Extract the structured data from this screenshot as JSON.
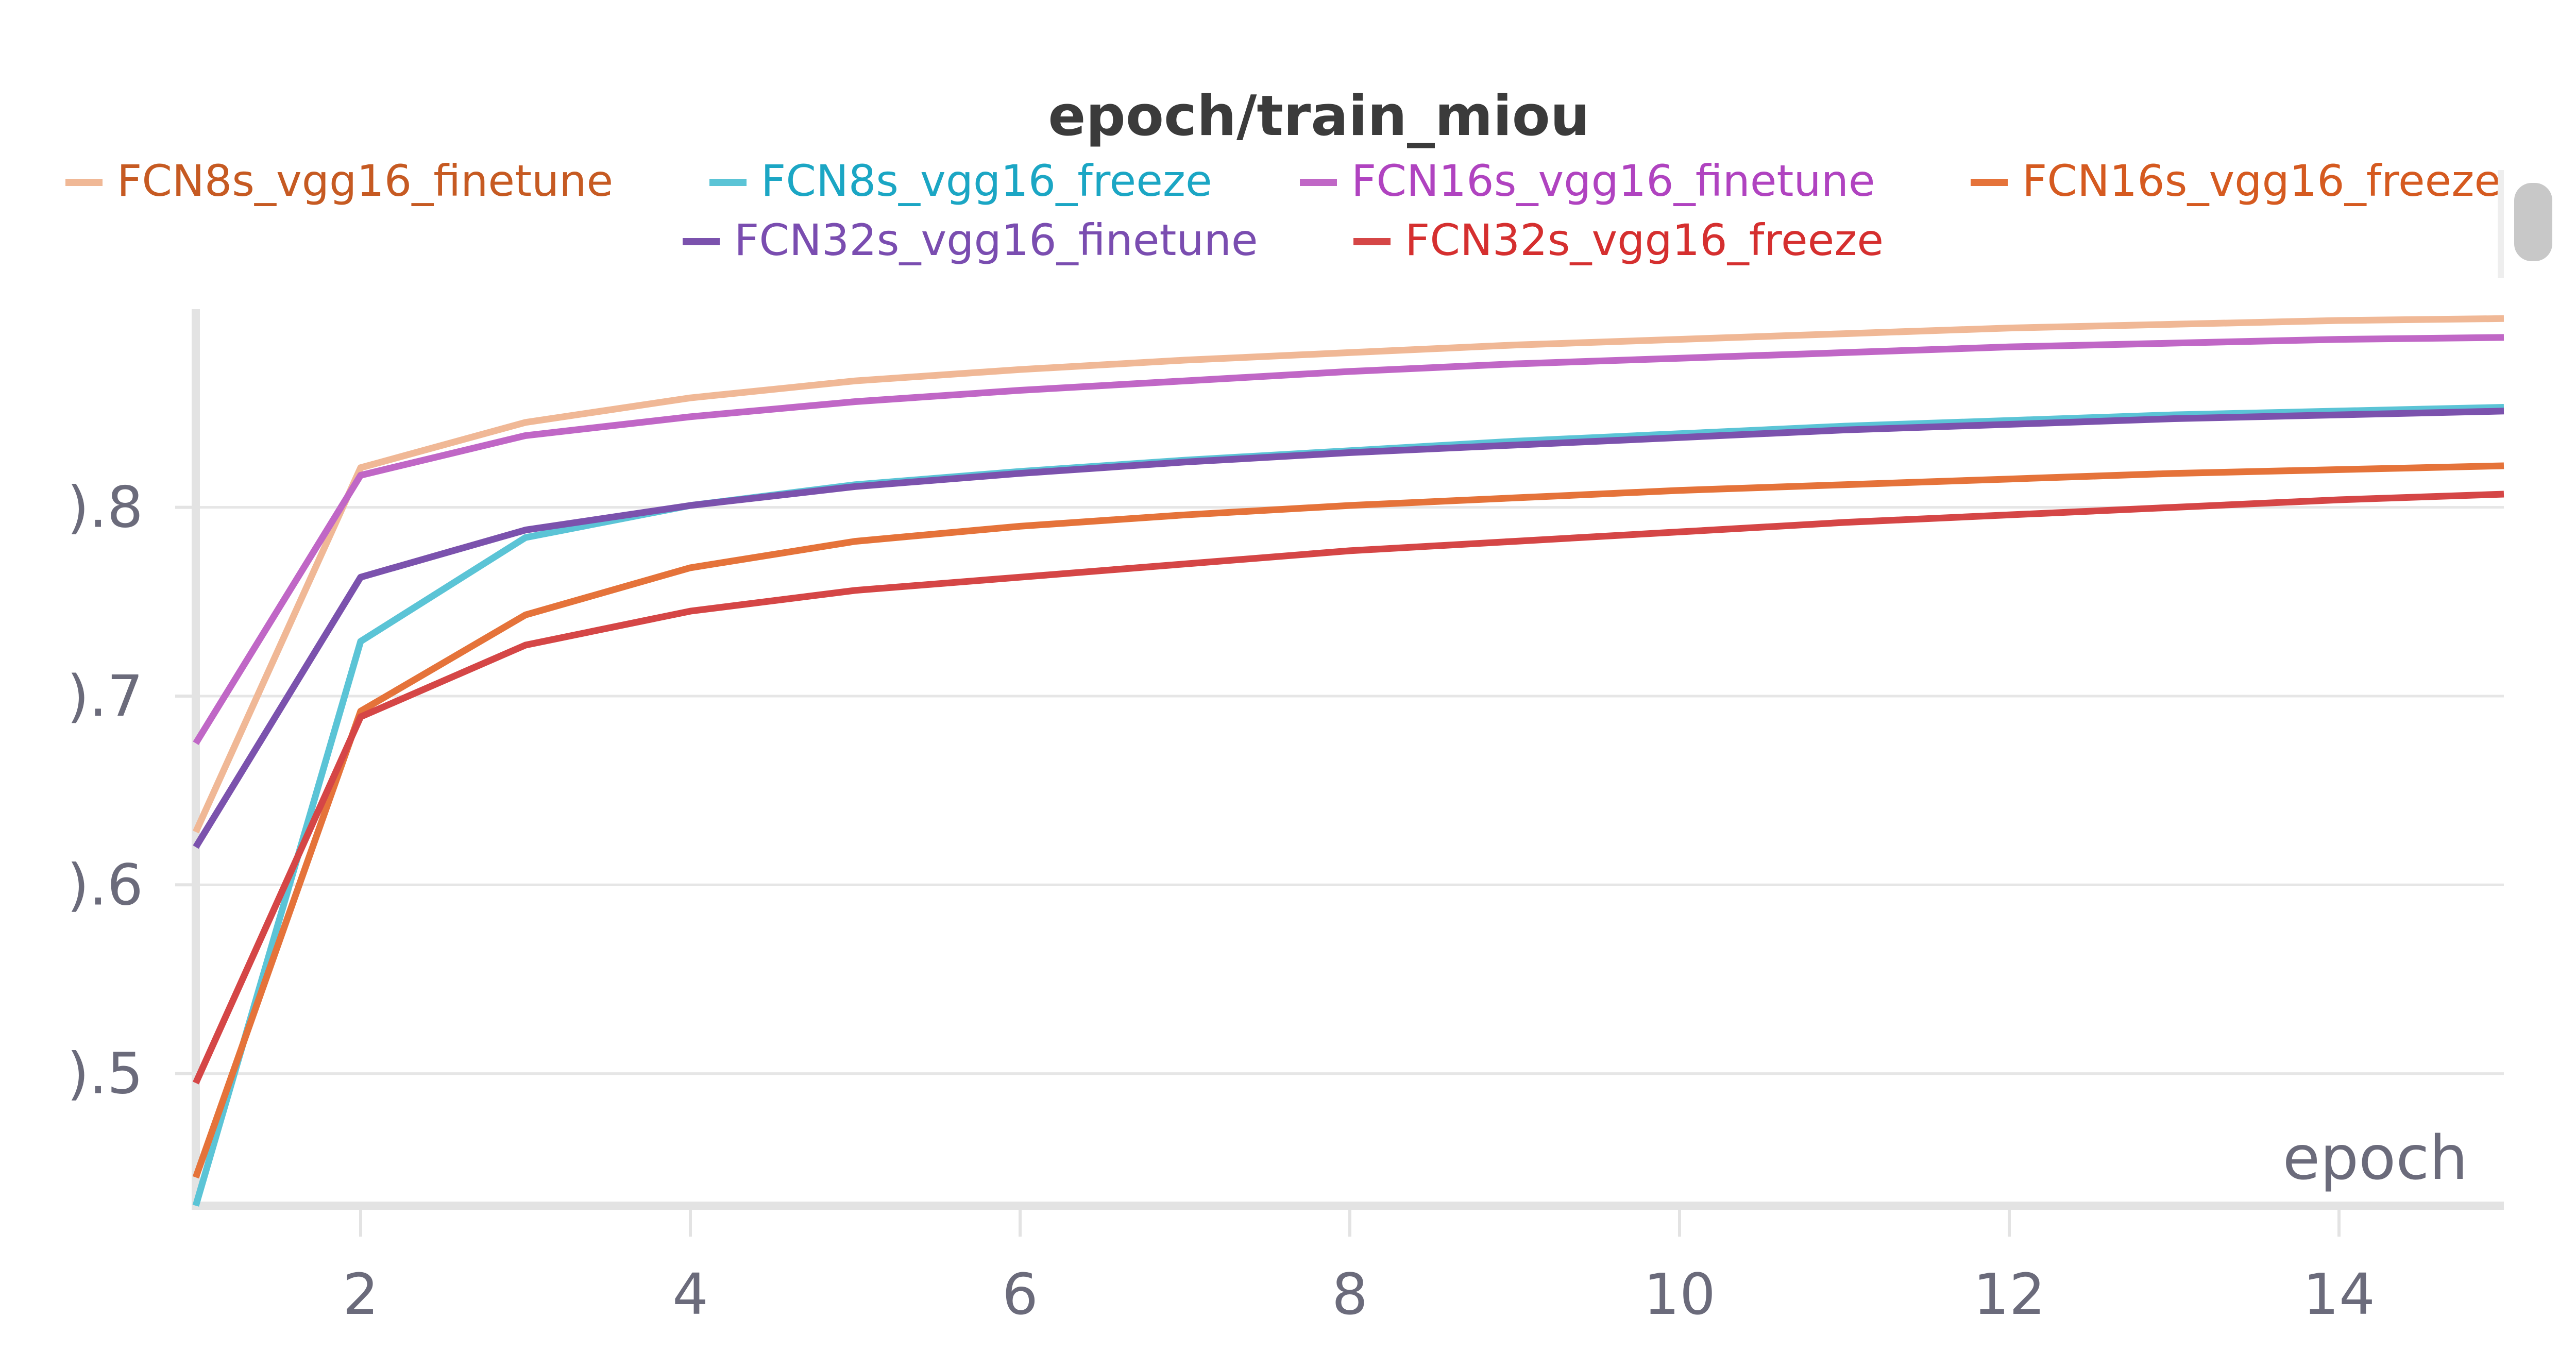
{
  "chart_data": {
    "type": "line",
    "title": "epoch/train_miou",
    "xlabel": "epoch",
    "ylabel": "",
    "xlim": [
      1,
      15
    ],
    "ylim": [
      0.43,
      0.905
    ],
    "x_ticks": [
      2,
      4,
      6,
      8,
      10,
      12,
      14
    ],
    "y_ticks": [
      0.5,
      0.6,
      0.7,
      0.8
    ],
    "y_tick_labels": [
      ").5",
      ").6",
      ").7",
      ").8"
    ],
    "grid": true,
    "legend_position": "top",
    "x": [
      1,
      2,
      3,
      4,
      5,
      6,
      7,
      8,
      9,
      10,
      11,
      12,
      13,
      14,
      15
    ],
    "series": [
      {
        "name": "FCN8s_vgg16_finetune",
        "color": "#f0b896",
        "label_color": "#c65a22",
        "values": [
          0.628,
          0.821,
          0.845,
          0.858,
          0.867,
          0.873,
          0.878,
          0.882,
          0.886,
          0.889,
          0.892,
          0.895,
          0.897,
          0.899,
          0.9
        ]
      },
      {
        "name": "FCN8s_vgg16_freeze",
        "color": "#5bc4d6",
        "label_color": "#1ba6c4",
        "values": [
          0.43,
          0.729,
          0.784,
          0.801,
          0.812,
          0.819,
          0.825,
          0.83,
          0.835,
          0.839,
          0.843,
          0.846,
          0.849,
          0.851,
          0.853
        ]
      },
      {
        "name": "FCN16s_vgg16_finetune",
        "color": "#c067c6",
        "label_color": "#b043c0",
        "values": [
          0.675,
          0.817,
          0.838,
          0.848,
          0.856,
          0.862,
          0.867,
          0.872,
          0.876,
          0.879,
          0.882,
          0.885,
          0.887,
          0.889,
          0.89
        ]
      },
      {
        "name": "FCN16s_vgg16_freeze",
        "color": "#e5733a",
        "label_color": "#d55a20",
        "values": [
          0.445,
          0.692,
          0.743,
          0.768,
          0.782,
          0.79,
          0.796,
          0.801,
          0.805,
          0.809,
          0.812,
          0.815,
          0.818,
          0.82,
          0.822
        ]
      },
      {
        "name": "FCN32s_vgg16_finetune",
        "color": "#7b52ad",
        "label_color": "#7a4db0",
        "values": [
          0.62,
          0.763,
          0.788,
          0.801,
          0.811,
          0.818,
          0.824,
          0.829,
          0.833,
          0.837,
          0.841,
          0.844,
          0.847,
          0.849,
          0.851
        ]
      },
      {
        "name": "FCN32s_vgg16_freeze",
        "color": "#d54646",
        "label_color": "#d52f2f",
        "values": [
          0.495,
          0.689,
          0.727,
          0.745,
          0.756,
          0.763,
          0.77,
          0.777,
          0.782,
          0.787,
          0.792,
          0.796,
          0.8,
          0.804,
          0.807
        ]
      }
    ]
  }
}
